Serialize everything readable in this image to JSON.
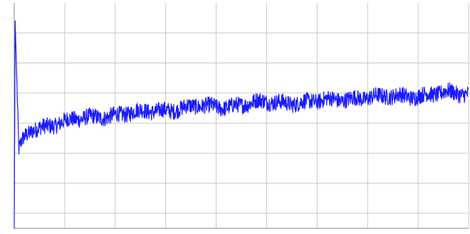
{
  "chart_data": {
    "type": "line",
    "title": "",
    "xlabel": "",
    "ylabel": "",
    "x_ticks": [],
    "y_ticks": [],
    "xlim": [
      0,
      1
    ],
    "ylim": [
      0,
      1
    ],
    "grid": true,
    "legend": "none",
    "colors": {
      "line": "#1a1aff",
      "grid": "#c8c8c8",
      "axis": "#888888",
      "background": "#ffffff"
    },
    "series": [
      {
        "name": "",
        "x": [
          0.002,
          0.006,
          0.01,
          0.016,
          0.025,
          0.04,
          0.06,
          0.08,
          0.1,
          0.13,
          0.16,
          0.2,
          0.25,
          0.3,
          0.35,
          0.4,
          0.45,
          0.5,
          0.55,
          0.6,
          0.65,
          0.7,
          0.75,
          0.8,
          0.85,
          0.9,
          0.95,
          1.0
        ],
        "y": [
          0.92,
          0.62,
          0.34,
          0.38,
          0.41,
          0.44,
          0.45,
          0.46,
          0.47,
          0.48,
          0.49,
          0.5,
          0.51,
          0.52,
          0.53,
          0.54,
          0.54,
          0.55,
          0.56,
          0.56,
          0.56,
          0.57,
          0.58,
          0.58,
          0.59,
          0.59,
          0.6,
          0.6
        ],
        "noise_amplitude": 0.035
      }
    ]
  }
}
